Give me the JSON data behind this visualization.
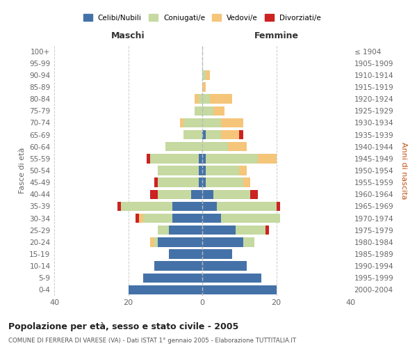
{
  "age_groups": [
    "100+",
    "95-99",
    "90-94",
    "85-89",
    "80-84",
    "75-79",
    "70-74",
    "65-69",
    "60-64",
    "55-59",
    "50-54",
    "45-49",
    "40-44",
    "35-39",
    "30-34",
    "25-29",
    "20-24",
    "15-19",
    "10-14",
    "5-9",
    "0-4"
  ],
  "birth_years": [
    "≤ 1904",
    "1905-1909",
    "1910-1914",
    "1915-1919",
    "1920-1924",
    "1925-1929",
    "1930-1934",
    "1935-1939",
    "1940-1944",
    "1945-1949",
    "1950-1954",
    "1955-1959",
    "1960-1964",
    "1965-1969",
    "1970-1974",
    "1975-1979",
    "1980-1984",
    "1985-1989",
    "1990-1994",
    "1995-1999",
    "2000-2004"
  ],
  "maschi": {
    "celibi": [
      0,
      0,
      0,
      0,
      0,
      0,
      0,
      0,
      0,
      1,
      1,
      1,
      3,
      8,
      8,
      9,
      12,
      9,
      13,
      16,
      20
    ],
    "coniugati": [
      0,
      0,
      0,
      0,
      1,
      2,
      5,
      5,
      10,
      13,
      11,
      11,
      9,
      14,
      8,
      3,
      1,
      0,
      0,
      0,
      0
    ],
    "vedovi": [
      0,
      0,
      0,
      0,
      1,
      0,
      1,
      0,
      0,
      0,
      0,
      0,
      0,
      0,
      1,
      0,
      1,
      0,
      0,
      0,
      0
    ],
    "divorziati": [
      0,
      0,
      0,
      0,
      0,
      0,
      0,
      0,
      0,
      1,
      0,
      1,
      2,
      1,
      1,
      0,
      0,
      0,
      0,
      0,
      0
    ]
  },
  "femmine": {
    "nubili": [
      0,
      0,
      0,
      0,
      0,
      0,
      0,
      1,
      0,
      1,
      1,
      1,
      3,
      4,
      5,
      9,
      11,
      8,
      12,
      16,
      20
    ],
    "coniugate": [
      0,
      0,
      1,
      0,
      2,
      3,
      5,
      4,
      7,
      14,
      9,
      10,
      10,
      16,
      16,
      8,
      3,
      0,
      0,
      0,
      0
    ],
    "vedove": [
      0,
      0,
      1,
      1,
      6,
      3,
      6,
      5,
      5,
      5,
      2,
      2,
      0,
      0,
      0,
      0,
      0,
      0,
      0,
      0,
      0
    ],
    "divorziate": [
      0,
      0,
      0,
      0,
      0,
      0,
      0,
      1,
      0,
      0,
      0,
      0,
      2,
      1,
      0,
      1,
      0,
      0,
      0,
      0,
      0
    ]
  },
  "color_celibi": "#4472a8",
  "color_coniugati": "#c5d9a0",
  "color_vedovi": "#f5c57a",
  "color_divorziati": "#cc2222",
  "xlim": 40,
  "title": "Popolazione per età, sesso e stato civile - 2005",
  "subtitle": "COMUNE DI FERRERA DI VARESE (VA) - Dati ISTAT 1° gennaio 2005 - Elaborazione TUTTITALIA.IT",
  "ylabel_left": "Fasce di età",
  "ylabel_right": "Anni di nascita",
  "xlabel_maschi": "Maschi",
  "xlabel_femmine": "Femmine"
}
